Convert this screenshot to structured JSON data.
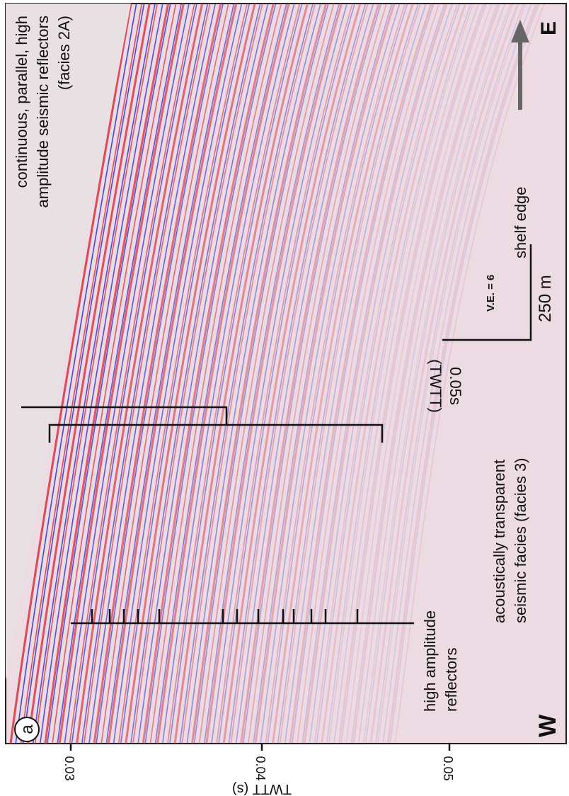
{
  "panel": {
    "label": "a",
    "west": "W",
    "east": "E"
  },
  "annotations": {
    "facies_2a": [
      "continuous, parallel, high",
      "amplitude seismic reflectors",
      "(facies 2A)"
    ],
    "high_amplitude": [
      "high amplitude",
      "reflectors"
    ],
    "facies_3": [
      "acoustically transparent",
      "seismic facies (facies 3)"
    ],
    "shelf_edge": "shelf edge"
  },
  "scale": {
    "vertical_exaggeration": "V.E. = 6",
    "horizontal": "250 m",
    "vertical": [
      "0.05s",
      "(TWTT)"
    ]
  },
  "axis": {
    "label": "TWTT (s)",
    "ticks": [
      "0.03",
      "0.04",
      "0.05"
    ]
  }
}
